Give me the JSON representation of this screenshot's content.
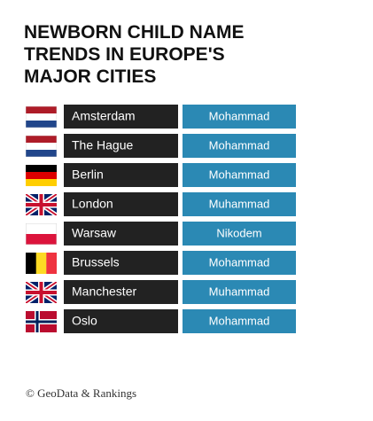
{
  "title": {
    "lines": [
      "NEWBORN CHILD NAME",
      "TRENDS IN EUROPE'S",
      "MAJOR CITIES"
    ]
  },
  "table": {
    "rows": [
      [
        "Amsterdam",
        "Mohammad"
      ],
      [
        "The Hague",
        "Mohammad"
      ],
      [
        "Berlin",
        "Mohammad"
      ],
      [
        "London",
        "Muhammad"
      ],
      [
        "Warsaw",
        "Nikodem"
      ],
      [
        "Brussels",
        "Mohammad"
      ],
      [
        "Manchester",
        "Muhammad"
      ],
      [
        "Oslo",
        "Mohammad"
      ]
    ]
  },
  "footer": "© GeoData & Rankings"
}
